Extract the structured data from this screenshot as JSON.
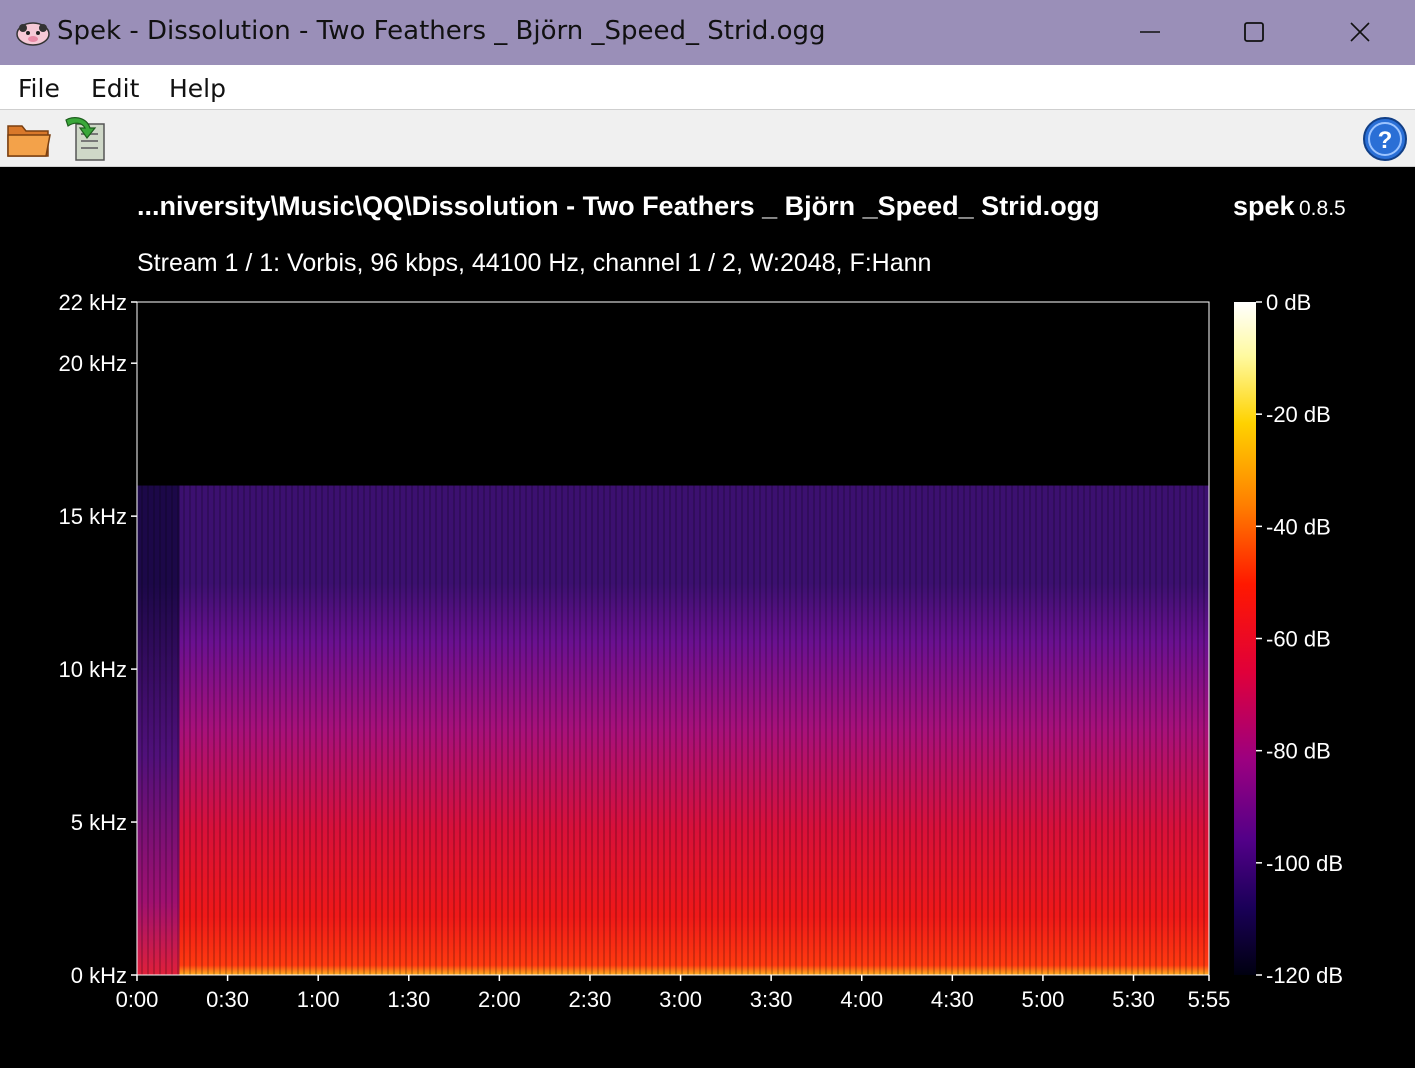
{
  "window": {
    "title": "Spek - Dissolution - Two Feathers _ Björn _Speed_ Strid.ogg"
  },
  "menu": {
    "items": [
      {
        "label": "File"
      },
      {
        "label": "Edit"
      },
      {
        "label": "Help"
      }
    ]
  },
  "toolbar": {
    "icons": [
      "open-folder-icon",
      "save-export-icon",
      "help-icon"
    ]
  },
  "header": {
    "file_path": "...niversity\\Music\\QQ\\Dissolution - Two Feathers _ Björn _Speed_ Strid.ogg",
    "brand": "spek",
    "version": "0.8.5",
    "stream_info": "Stream 1 / 1: Vorbis, 96 kbps, 44100 Hz, channel 1 / 2, W:2048, F:Hann"
  },
  "colors": {
    "titlebar": "#9a8fb8",
    "help_icon": "#2a6fd6"
  },
  "chart_data": {
    "type": "heatmap",
    "title": "",
    "y_axis": {
      "ticks": [
        {
          "value": 0,
          "label": "0 kHz"
        },
        {
          "value": 5,
          "label": "5 kHz"
        },
        {
          "value": 10,
          "label": "10 kHz"
        },
        {
          "value": 15,
          "label": "15 kHz"
        },
        {
          "value": 20,
          "label": "20 kHz"
        },
        {
          "value": 22,
          "label": "22 kHz"
        }
      ],
      "range": [
        0,
        22
      ]
    },
    "x_axis": {
      "ticks": [
        {
          "value": 0,
          "label": "0:00"
        },
        {
          "value": 30,
          "label": "0:30"
        },
        {
          "value": 60,
          "label": "1:00"
        },
        {
          "value": 90,
          "label": "1:30"
        },
        {
          "value": 120,
          "label": "2:00"
        },
        {
          "value": 150,
          "label": "2:30"
        },
        {
          "value": 180,
          "label": "3:00"
        },
        {
          "value": 210,
          "label": "3:30"
        },
        {
          "value": 240,
          "label": "4:00"
        },
        {
          "value": 270,
          "label": "4:30"
        },
        {
          "value": 300,
          "label": "5:00"
        },
        {
          "value": 330,
          "label": "5:30"
        },
        {
          "value": 355,
          "label": "5:55"
        }
      ],
      "range": [
        0,
        355
      ]
    },
    "colorbar": {
      "ticks": [
        {
          "value": 0,
          "label": "0 dB"
        },
        {
          "value": -20,
          "label": "-20 dB"
        },
        {
          "value": -40,
          "label": "-40 dB"
        },
        {
          "value": -60,
          "label": "-60 dB"
        },
        {
          "value": -80,
          "label": "-80 dB"
        },
        {
          "value": -100,
          "label": "-100 dB"
        },
        {
          "value": -120,
          "label": "-120 dB"
        }
      ],
      "range": [
        -120,
        0
      ]
    },
    "cutoff_khz": 16,
    "quiet_intro_end_s": 14
  }
}
